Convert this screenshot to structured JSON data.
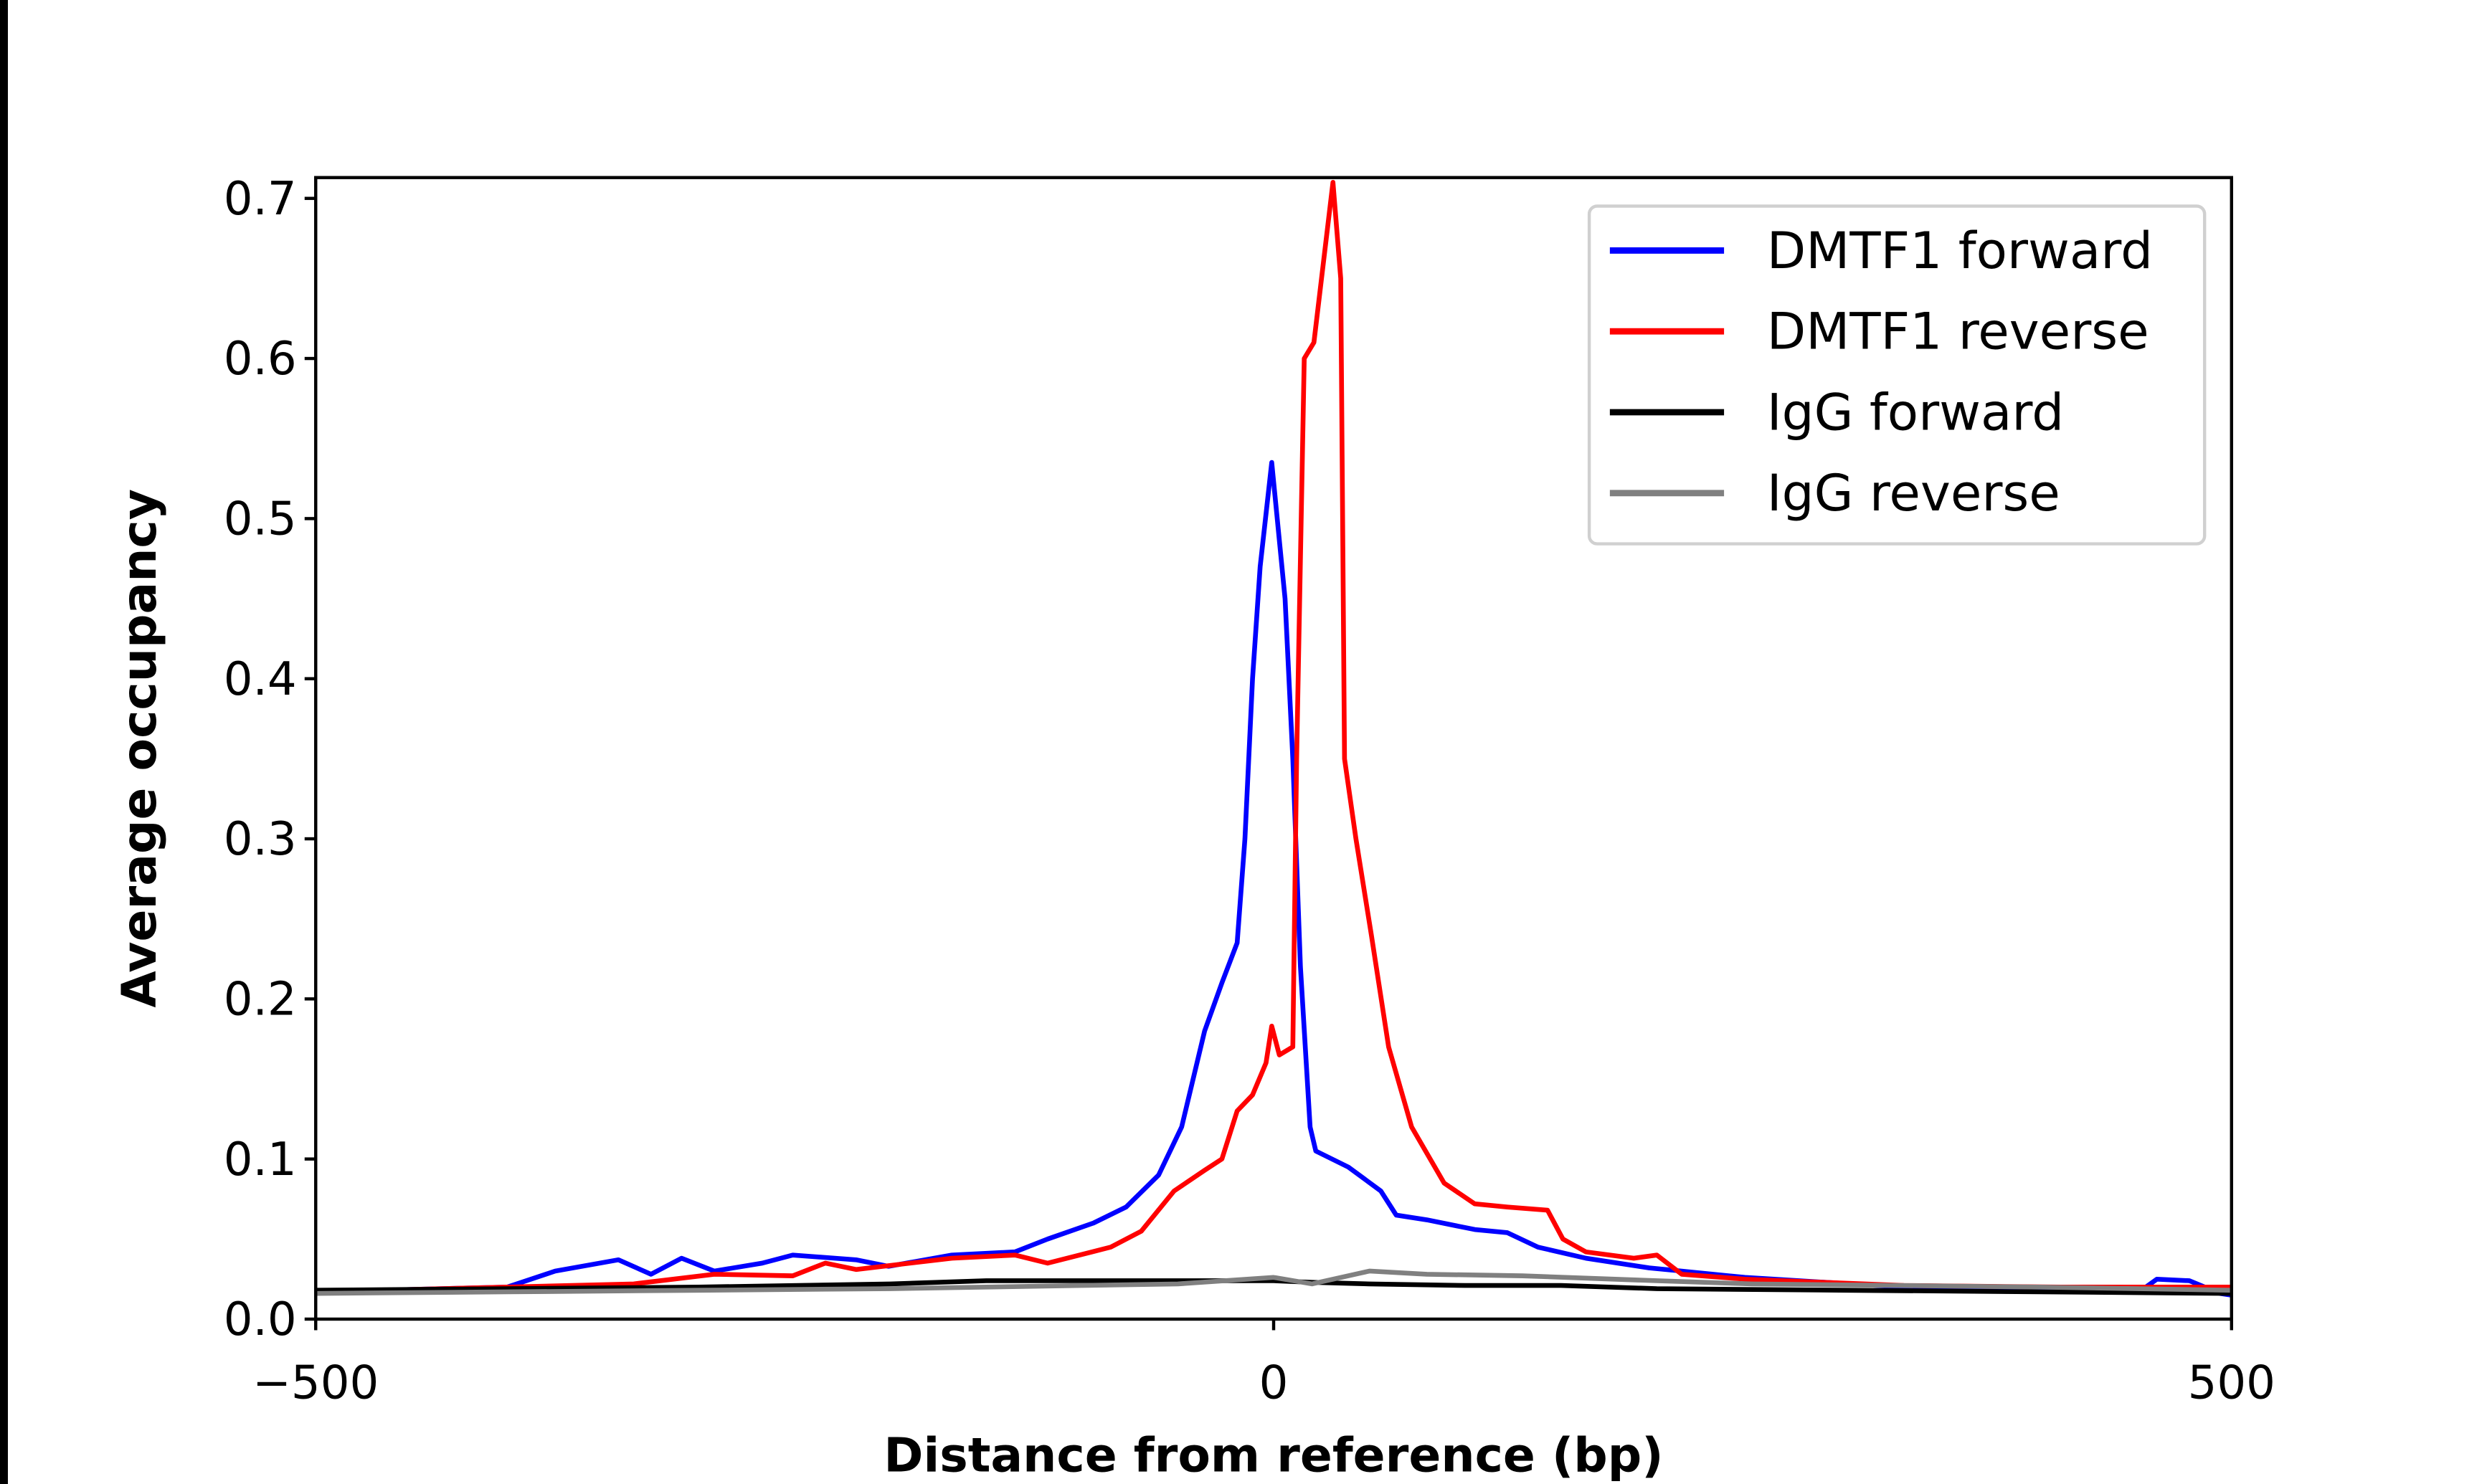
{
  "chart_data": {
    "type": "line",
    "title": "",
    "xlabel": "Distance from reference (bp)",
    "ylabel": "Average occupancy",
    "xlim": [
      -500,
      500
    ],
    "ylim": [
      0,
      0.713
    ],
    "xticks": [
      -500,
      0,
      500
    ],
    "xtick_labels": [
      "−500",
      "0",
      "500"
    ],
    "yticks": [
      0,
      0.1,
      0.2,
      0.3,
      0.4,
      0.5,
      0.6,
      0.7
    ],
    "ytick_labels": [
      "0.0",
      "0.1",
      "0.2",
      "0.3",
      "0.4",
      "0.5",
      "0.6",
      "0.7"
    ],
    "grid": false,
    "legend_position": "top-right",
    "series": [
      {
        "name": "DMTF1 forward",
        "color": "#0000ff",
        "x": [
          -500,
          -400,
          -375,
          -342,
          -325,
          -309,
          -292,
          -267,
          -251,
          -218,
          -201,
          -168,
          -135,
          -118,
          -94,
          -77,
          -60,
          -48,
          -36,
          -27,
          -19,
          -15,
          -11,
          -7,
          -1,
          6,
          10,
          14,
          19,
          22,
          39,
          56,
          64,
          80,
          105,
          122,
          138,
          163,
          196,
          213,
          246,
          329,
          411,
          453,
          461,
          478,
          494,
          500
        ],
        "y": [
          0.017,
          0.02,
          0.03,
          0.037,
          0.028,
          0.038,
          0.03,
          0.035,
          0.04,
          0.037,
          0.033,
          0.04,
          0.042,
          0.05,
          0.06,
          0.07,
          0.09,
          0.12,
          0.18,
          0.21,
          0.235,
          0.3,
          0.4,
          0.47,
          0.535,
          0.45,
          0.35,
          0.22,
          0.12,
          0.105,
          0.095,
          0.08,
          0.065,
          0.062,
          0.056,
          0.054,
          0.045,
          0.038,
          0.032,
          0.03,
          0.026,
          0.02,
          0.019,
          0.018,
          0.025,
          0.024,
          0.016,
          0.015
        ]
      },
      {
        "name": "DMTF1 reverse",
        "color": "#ff0000",
        "x": [
          -500,
          -400,
          -334,
          -292,
          -251,
          -234,
          -218,
          -168,
          -135,
          -118,
          -85,
          -69,
          -52,
          -36,
          -27,
          -19,
          -11,
          -4,
          -1,
          3,
          10,
          12,
          16,
          21,
          27,
          31,
          35,
          37,
          43,
          51,
          60,
          72,
          89,
          105,
          122,
          143,
          151,
          163,
          188,
          200,
          213,
          246,
          329,
          411,
          500
        ],
        "y": [
          0.017,
          0.02,
          0.022,
          0.028,
          0.027,
          0.035,
          0.031,
          0.038,
          0.04,
          0.035,
          0.045,
          0.055,
          0.08,
          0.093,
          0.1,
          0.13,
          0.14,
          0.16,
          0.183,
          0.165,
          0.17,
          0.35,
          0.6,
          0.61,
          0.67,
          0.71,
          0.65,
          0.35,
          0.3,
          0.24,
          0.17,
          0.12,
          0.085,
          0.072,
          0.07,
          0.068,
          0.05,
          0.042,
          0.038,
          0.04,
          0.028,
          0.025,
          0.021,
          0.02,
          0.02
        ]
      },
      {
        "name": "IgG forward",
        "color": "#000000",
        "x": [
          -500,
          -400,
          -300,
          -200,
          -150,
          -100,
          -50,
          0,
          20,
          50,
          100,
          150,
          200,
          300,
          400,
          500
        ],
        "y": [
          0.018,
          0.019,
          0.02,
          0.022,
          0.024,
          0.024,
          0.024,
          0.024,
          0.023,
          0.022,
          0.021,
          0.021,
          0.019,
          0.018,
          0.017,
          0.016
        ]
      },
      {
        "name": "IgG reverse",
        "color": "#808080",
        "x": [
          -500,
          -400,
          -300,
          -200,
          -100,
          -50,
          0,
          20,
          50,
          80,
          130,
          200,
          250,
          400,
          500
        ],
        "y": [
          0.016,
          0.017,
          0.018,
          0.019,
          0.021,
          0.022,
          0.026,
          0.022,
          0.03,
          0.028,
          0.027,
          0.024,
          0.022,
          0.02,
          0.018
        ]
      }
    ]
  }
}
